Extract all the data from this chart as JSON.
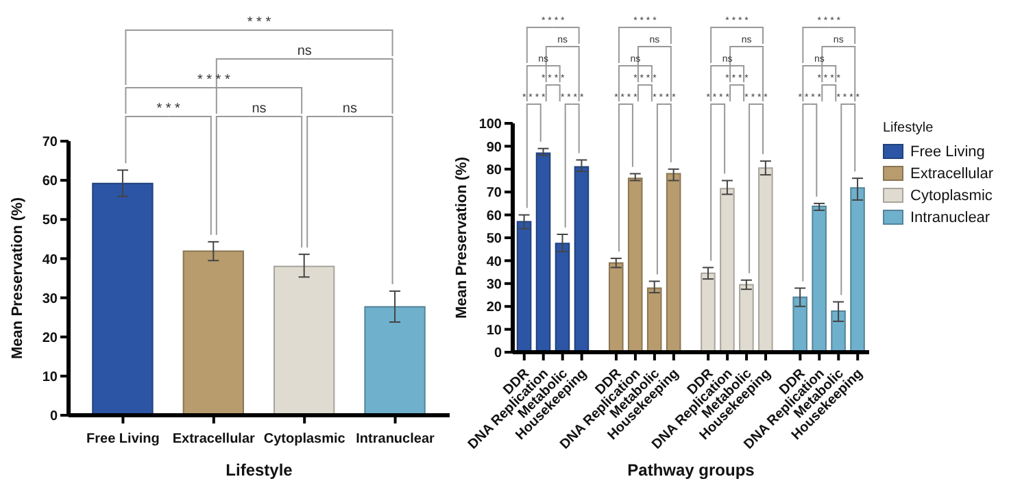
{
  "chart_data": [
    {
      "type": "bar",
      "xlabel": "Lifestyle",
      "ylabel": "Mean Preservation (%)",
      "categories": [
        "Free Living",
        "Extracellular",
        "Cytoplasmic",
        "Intranuclear"
      ],
      "values": [
        59.2,
        41.9,
        38.0,
        27.7
      ],
      "colors": [
        "#2c56a5",
        "#b89c6e",
        "#e0dbd0",
        "#6fb0cc"
      ],
      "errors": [
        [
          55.9,
          62.6
        ],
        [
          39.5,
          44.3
        ],
        [
          35.3,
          41.1
        ],
        [
          23.8,
          31.7
        ]
      ],
      "ylim": [
        0,
        70
      ],
      "yticks": [
        0,
        10,
        20,
        30,
        40,
        50,
        60,
        70
      ],
      "annotations": [
        "* * *",
        "ns",
        "* * * *",
        "* * *",
        "ns",
        "ns"
      ]
    },
    {
      "type": "bar",
      "xlabel": "Pathway groups",
      "ylabel": "Mean Preservation (%)",
      "legend_title": "Lifestyle",
      "legend": "right",
      "categories": [
        "DDR",
        "DNA Replication",
        "Metabolic",
        "Housekeeping",
        "DDR",
        "DNA Replication",
        "Metabolic",
        "Housekeeping",
        "DDR",
        "DNA Replication",
        "Metabolic",
        "Housekeeping",
        "DDR",
        "DNA Replication",
        "Metabolic",
        "Housekeeping"
      ],
      "series": [
        {
          "name": "Free Living",
          "color": "#2c56a5",
          "values": [
            57,
            87,
            47.5,
            81,
            null,
            null,
            null,
            null,
            null,
            null,
            null,
            null,
            null,
            null,
            null,
            null
          ],
          "errors": [
            [
              54,
              60
            ],
            [
              86,
              89
            ],
            [
              44,
              51.5
            ],
            [
              79,
              84
            ],
            null,
            null,
            null,
            null,
            null,
            null,
            null,
            null,
            null,
            null,
            null,
            null
          ]
        },
        {
          "name": "Extracellular",
          "color": "#b89c6e",
          "values": [
            null,
            null,
            null,
            null,
            39,
            76,
            28,
            78,
            null,
            null,
            null,
            null,
            null,
            null,
            null,
            null
          ],
          "errors": [
            null,
            null,
            null,
            null,
            [
              37,
              41
            ],
            [
              75,
              78
            ],
            [
              26,
              31
            ],
            [
              75,
              80
            ],
            null,
            null,
            null,
            null,
            null,
            null,
            null,
            null
          ]
        },
        {
          "name": "Cytoplasmic",
          "color": "#e0dbd0",
          "values": [
            null,
            null,
            null,
            null,
            null,
            null,
            null,
            null,
            34.5,
            71.5,
            29.5,
            80.5,
            null,
            null,
            null,
            null
          ],
          "errors": [
            null,
            null,
            null,
            null,
            null,
            null,
            null,
            null,
            [
              32,
              37
            ],
            [
              69,
              75
            ],
            [
              27.5,
              31.5
            ],
            [
              77.5,
              83.5
            ],
            null,
            null,
            null,
            null
          ]
        },
        {
          "name": "Intranuclear",
          "color": "#6fb0cc",
          "values": [
            null,
            null,
            null,
            null,
            null,
            null,
            null,
            null,
            null,
            null,
            null,
            null,
            24,
            63.8,
            18,
            71.8
          ],
          "errors": [
            null,
            null,
            null,
            null,
            null,
            null,
            null,
            null,
            null,
            null,
            null,
            null,
            [
              20,
              28
            ],
            [
              62,
              65
            ],
            [
              13.5,
              22
            ],
            [
              66.5,
              76
            ]
          ]
        }
      ],
      "ylim": [
        0,
        100
      ],
      "yticks": [
        0,
        10,
        20,
        30,
        40,
        50,
        60,
        70,
        80,
        90,
        100
      ],
      "annotations": [
        "* * * *",
        "ns",
        "ns",
        "* * * *",
        "* * * *",
        "* * * *",
        "* * * *",
        "ns",
        "ns",
        "* * * *",
        "* * * *",
        "* * * *",
        "* * * *",
        "ns",
        "ns",
        "* * * *",
        "* * * *",
        "* * * *",
        "* * * *",
        "ns",
        "ns",
        "* * * *",
        "* * * *",
        "* * * *"
      ]
    }
  ]
}
